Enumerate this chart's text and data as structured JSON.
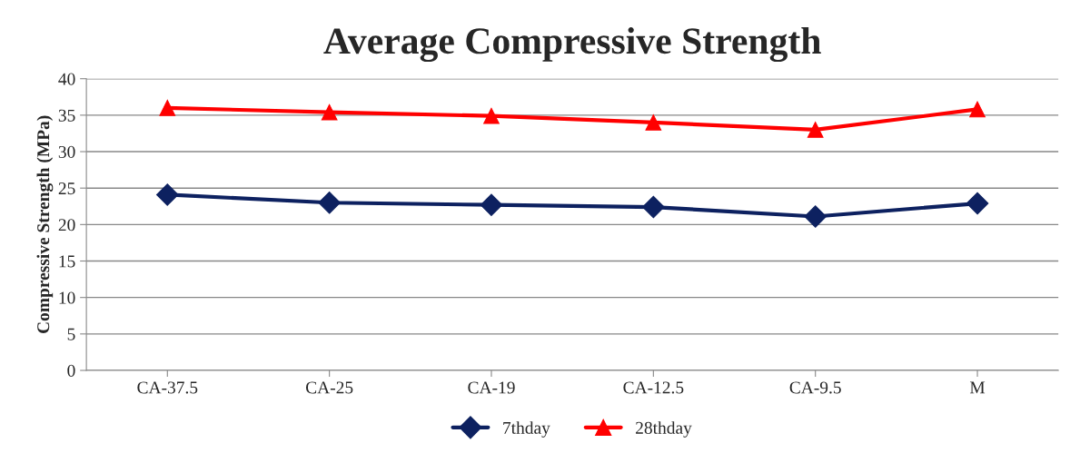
{
  "chart_data": {
    "type": "line",
    "title": "Average Compressive Strength",
    "ylabel": "Compressive Strength (MPa)",
    "categories": [
      "CA-37.5",
      "CA-25",
      "CA-19",
      "CA-12.5",
      "CA-9.5",
      "M"
    ],
    "series": [
      {
        "name": "7thday",
        "color": "#0d2160",
        "marker": "diamond",
        "values": [
          24.1,
          23.0,
          22.7,
          22.4,
          21.1,
          22.9
        ]
      },
      {
        "name": "28thday",
        "color": "#ff0000",
        "marker": "triangle",
        "values": [
          36.0,
          35.4,
          34.9,
          34.0,
          33.0,
          35.8
        ]
      }
    ],
    "ylim": [
      0,
      40
    ],
    "yticks": [
      0,
      5,
      10,
      15,
      20,
      25,
      30,
      35,
      40
    ],
    "grid": "y",
    "legend": "bottom",
    "line_style": "solid"
  }
}
